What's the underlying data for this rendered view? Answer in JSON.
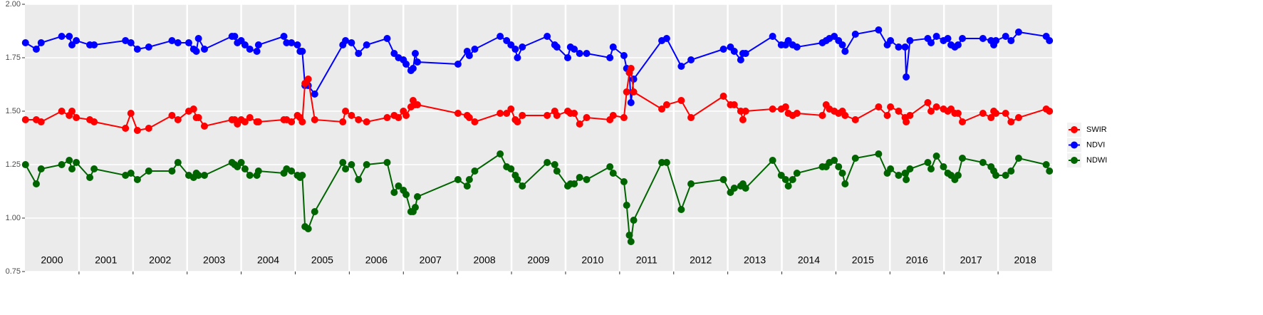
{
  "chart_data": {
    "type": "line",
    "x": [
      2000.01,
      2000.21,
      2000.3,
      2000.68,
      2000.82,
      2000.87,
      2000.95,
      2001.2,
      2001.28,
      2001.86,
      2001.96,
      2002.08,
      2002.29,
      2002.72,
      2002.83,
      2003.03,
      2003.12,
      2003.17,
      2003.21,
      2003.32,
      2003.83,
      2003.88,
      2003.93,
      2004.0,
      2004.07,
      2004.16,
      2004.29,
      2004.32,
      2004.79,
      2004.84,
      2004.93,
      2005.04,
      2005.09,
      2005.13,
      2005.18,
      2005.24,
      2005.36,
      2005.88,
      2005.93,
      2006.04,
      2006.17,
      2006.32,
      2006.7,
      2006.83,
      2006.91,
      2007.0,
      2007.05,
      2007.14,
      2007.18,
      2007.22,
      2007.26,
      2008.01,
      2008.18,
      2008.22,
      2008.32,
      2008.79,
      2008.91,
      2008.99,
      2009.07,
      2009.11,
      2009.2,
      2009.66,
      2009.8,
      2009.84,
      2010.04,
      2010.09,
      2010.16,
      2010.26,
      2010.39,
      2010.82,
      2010.88,
      2011.08,
      2011.13,
      2011.18,
      2011.21,
      2011.26,
      2011.78,
      2011.87,
      2012.14,
      2012.32,
      2012.92,
      2013.05,
      2013.12,
      2013.24,
      2013.28,
      2013.33,
      2013.83,
      2013.99,
      2014.07,
      2014.12,
      2014.2,
      2014.28,
      2014.75,
      2014.82,
      2014.88,
      2014.97,
      2015.05,
      2015.12,
      2015.17,
      2015.36,
      2015.79,
      2015.95,
      2016.01,
      2016.16,
      2016.28,
      2016.3,
      2016.37,
      2016.7,
      2016.76,
      2016.86,
      2016.99,
      2017.07,
      2017.13,
      2017.2,
      2017.26,
      2017.34,
      2017.72,
      2017.87,
      2017.92,
      2017.96,
      2018.14,
      2018.24,
      2018.38,
      2018.89,
      2018.95
    ],
    "series": [
      {
        "name": "SWIR",
        "color": "#ff0000",
        "values": [
          1.46,
          1.46,
          1.45,
          1.5,
          1.48,
          1.5,
          1.47,
          1.46,
          1.45,
          1.42,
          1.49,
          1.41,
          1.42,
          1.48,
          1.46,
          1.5,
          1.51,
          1.47,
          1.47,
          1.43,
          1.46,
          1.46,
          1.44,
          1.46,
          1.45,
          1.47,
          1.45,
          1.45,
          1.46,
          1.46,
          1.45,
          1.48,
          1.47,
          1.45,
          1.63,
          1.65,
          1.46,
          1.45,
          1.5,
          1.48,
          1.46,
          1.45,
          1.47,
          1.48,
          1.47,
          1.5,
          1.48,
          1.52,
          1.55,
          1.53,
          1.53,
          1.49,
          1.48,
          1.47,
          1.45,
          1.49,
          1.49,
          1.51,
          1.46,
          1.45,
          1.48,
          1.48,
          1.5,
          1.48,
          1.5,
          1.49,
          1.49,
          1.44,
          1.47,
          1.46,
          1.48,
          1.47,
          1.59,
          1.68,
          1.7,
          1.59,
          1.51,
          1.53,
          1.55,
          1.47,
          1.57,
          1.53,
          1.53,
          1.5,
          1.46,
          1.5,
          1.51,
          1.51,
          1.52,
          1.49,
          1.48,
          1.49,
          1.48,
          1.53,
          1.51,
          1.5,
          1.49,
          1.5,
          1.48,
          1.46,
          1.52,
          1.48,
          1.52,
          1.5,
          1.47,
          1.45,
          1.48,
          1.54,
          1.5,
          1.52,
          1.51,
          1.5,
          1.51,
          1.49,
          1.49,
          1.45,
          1.49,
          1.47,
          1.5,
          1.49,
          1.49,
          1.45,
          1.47,
          1.51,
          1.5
        ]
      },
      {
        "name": "NDVI",
        "color": "#0000ff",
        "values": [
          1.82,
          1.79,
          1.82,
          1.85,
          1.85,
          1.81,
          1.83,
          1.81,
          1.81,
          1.83,
          1.82,
          1.79,
          1.8,
          1.83,
          1.82,
          1.82,
          1.79,
          1.78,
          1.84,
          1.79,
          1.85,
          1.85,
          1.82,
          1.83,
          1.81,
          1.79,
          1.78,
          1.81,
          1.85,
          1.82,
          1.82,
          1.81,
          1.78,
          1.78,
          1.62,
          1.62,
          1.58,
          1.81,
          1.83,
          1.82,
          1.77,
          1.81,
          1.84,
          1.77,
          1.75,
          1.74,
          1.72,
          1.69,
          1.7,
          1.77,
          1.73,
          1.72,
          1.78,
          1.76,
          1.79,
          1.85,
          1.83,
          1.81,
          1.79,
          1.75,
          1.8,
          1.85,
          1.81,
          1.8,
          1.75,
          1.8,
          1.79,
          1.77,
          1.77,
          1.75,
          1.8,
          1.76,
          1.7,
          1.68,
          1.54,
          1.65,
          1.83,
          1.84,
          1.71,
          1.74,
          1.79,
          1.8,
          1.78,
          1.74,
          1.77,
          1.77,
          1.85,
          1.81,
          1.81,
          1.83,
          1.81,
          1.8,
          1.82,
          1.83,
          1.84,
          1.85,
          1.83,
          1.81,
          1.78,
          1.86,
          1.88,
          1.81,
          1.83,
          1.8,
          1.8,
          1.66,
          1.83,
          1.84,
          1.82,
          1.85,
          1.83,
          1.84,
          1.81,
          1.8,
          1.81,
          1.84,
          1.84,
          1.83,
          1.81,
          1.83,
          1.85,
          1.83,
          1.87,
          1.85,
          1.83
        ]
      },
      {
        "name": "NDWI",
        "color": "#006400",
        "values": [
          1.25,
          1.16,
          1.23,
          1.25,
          1.27,
          1.23,
          1.26,
          1.19,
          1.23,
          1.2,
          1.21,
          1.18,
          1.22,
          1.22,
          1.26,
          1.2,
          1.19,
          1.21,
          1.2,
          1.2,
          1.26,
          1.25,
          1.24,
          1.26,
          1.23,
          1.2,
          1.2,
          1.22,
          1.21,
          1.23,
          1.22,
          1.2,
          1.19,
          1.2,
          0.96,
          0.95,
          1.03,
          1.26,
          1.23,
          1.25,
          1.18,
          1.25,
          1.26,
          1.12,
          1.15,
          1.13,
          1.11,
          1.03,
          1.03,
          1.05,
          1.1,
          1.18,
          1.15,
          1.18,
          1.22,
          1.3,
          1.24,
          1.23,
          1.2,
          1.18,
          1.15,
          1.26,
          1.25,
          1.22,
          1.15,
          1.16,
          1.16,
          1.19,
          1.18,
          1.24,
          1.21,
          1.17,
          1.06,
          0.92,
          0.89,
          0.99,
          1.26,
          1.26,
          1.04,
          1.16,
          1.18,
          1.12,
          1.14,
          1.15,
          1.16,
          1.14,
          1.27,
          1.2,
          1.18,
          1.15,
          1.18,
          1.21,
          1.24,
          1.24,
          1.26,
          1.27,
          1.24,
          1.21,
          1.16,
          1.28,
          1.3,
          1.21,
          1.23,
          1.2,
          1.21,
          1.18,
          1.23,
          1.26,
          1.23,
          1.29,
          1.24,
          1.21,
          1.2,
          1.18,
          1.2,
          1.28,
          1.26,
          1.24,
          1.22,
          1.2,
          1.2,
          1.22,
          1.28,
          1.25,
          1.22
        ]
      }
    ],
    "xlim": [
      2000,
      2019
    ],
    "xticks": [
      2000,
      2001,
      2002,
      2003,
      2004,
      2005,
      2006,
      2007,
      2008,
      2009,
      2010,
      2011,
      2012,
      2013,
      2014,
      2015,
      2016,
      2017,
      2018
    ],
    "ylim": [
      0.75,
      2.0
    ],
    "yticks": [
      {
        "value": 0.75,
        "label": "0.75"
      },
      {
        "value": 1.0,
        "label": "1.00"
      },
      {
        "value": 1.25,
        "label": "1.25"
      },
      {
        "value": 1.5,
        "label": "1.50"
      },
      {
        "value": 1.75,
        "label": "1.75"
      },
      {
        "value": 2.0,
        "label": "2.00"
      }
    ],
    "grid": true,
    "legend": "right"
  }
}
